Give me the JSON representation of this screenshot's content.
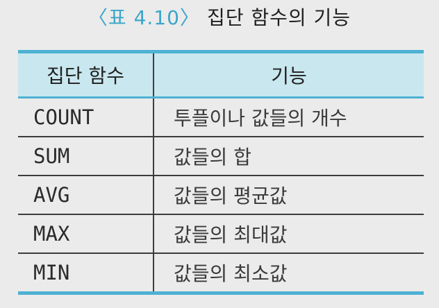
{
  "caption": {
    "number": "〈표 4.10〉",
    "title": "집단 함수의 기능"
  },
  "table": {
    "headers": [
      "집단 함수",
      "기능"
    ],
    "rows": [
      {
        "function": "COUNT",
        "description": "투플이나 값들의 개수"
      },
      {
        "function": "SUM",
        "description": "값들의 합"
      },
      {
        "function": "AVG",
        "description": "값들의 평균값"
      },
      {
        "function": "MAX",
        "description": "값들의 최대값"
      },
      {
        "function": "MIN",
        "description": "값들의 최소값"
      }
    ]
  },
  "colors": {
    "accent": "#4db1d3",
    "header_bg": "#c9e7ee",
    "page_bg": "#ebebeb"
  }
}
